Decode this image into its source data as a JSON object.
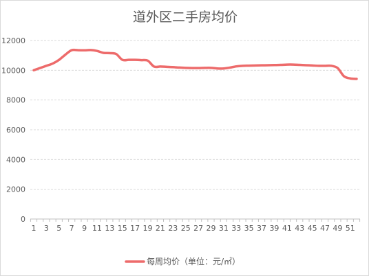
{
  "chart_data": {
    "type": "line",
    "title": "道外区二手房均价",
    "xlabel": "",
    "ylabel": "",
    "x": [
      1,
      2,
      3,
      4,
      5,
      6,
      7,
      8,
      9,
      10,
      11,
      12,
      13,
      14,
      15,
      16,
      17,
      18,
      19,
      20,
      21,
      22,
      23,
      24,
      25,
      26,
      27,
      28,
      29,
      30,
      31,
      32,
      33,
      34,
      35,
      36,
      37,
      38,
      39,
      40,
      41,
      42,
      43,
      44,
      45,
      46,
      47,
      48,
      49,
      50,
      51,
      52
    ],
    "x_tick_labels": [
      "1",
      "3",
      "5",
      "7",
      "9",
      "11",
      "13",
      "15",
      "17",
      "19",
      "21",
      "23",
      "25",
      "27",
      "29",
      "31",
      "33",
      "35",
      "37",
      "39",
      "41",
      "43",
      "45",
      "47",
      "49",
      "51"
    ],
    "ylim": [
      0,
      12000
    ],
    "y_ticks": [
      0,
      2000,
      4000,
      6000,
      8000,
      10000,
      12000
    ],
    "grid": true,
    "legend_position": "bottom",
    "series": [
      {
        "name": "每周均价（单位：元/㎡）",
        "color": "#ed6b6b",
        "values": [
          10000,
          10150,
          10300,
          10450,
          10700,
          11050,
          11350,
          11350,
          11340,
          11360,
          11300,
          11170,
          11150,
          11100,
          10700,
          10700,
          10700,
          10680,
          10650,
          10250,
          10250,
          10230,
          10210,
          10180,
          10160,
          10150,
          10150,
          10160,
          10160,
          10120,
          10120,
          10180,
          10260,
          10300,
          10310,
          10320,
          10330,
          10340,
          10350,
          10360,
          10380,
          10380,
          10360,
          10340,
          10320,
          10300,
          10300,
          10300,
          10150,
          9600,
          9450,
          9420
        ]
      }
    ]
  }
}
